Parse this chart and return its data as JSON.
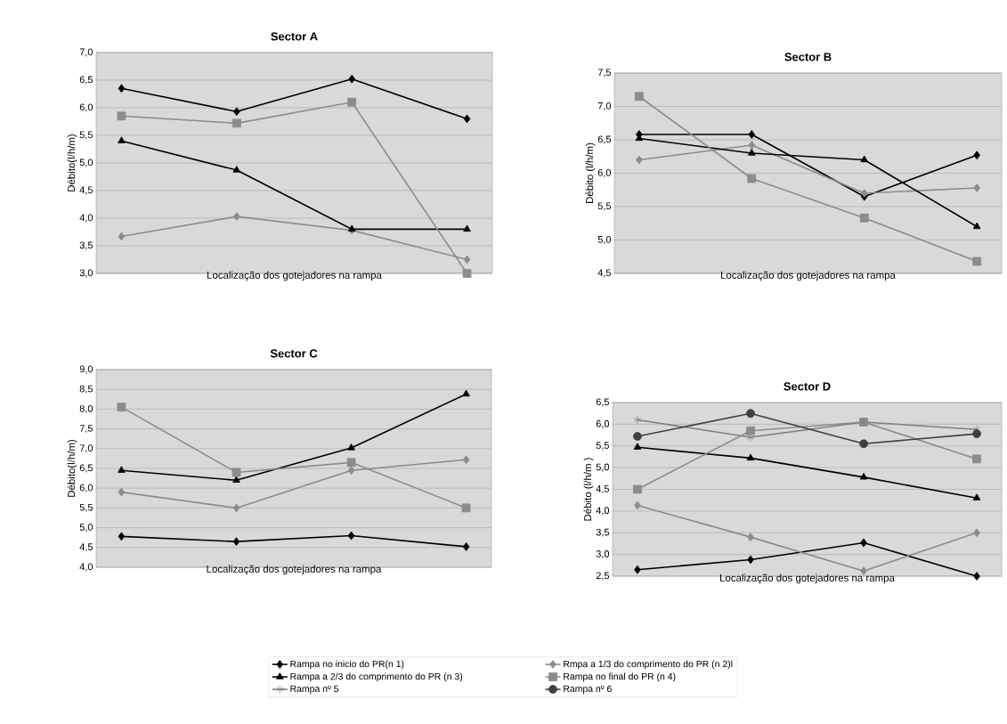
{
  "chart_data": [
    {
      "type": "line",
      "title": "Sector A",
      "xlabel": "Localização dos gotejadores na rampa",
      "ylabel": "Débito(l/h/m)",
      "categories": [
        null,
        null,
        null,
        null
      ],
      "ylim": [
        3,
        7
      ],
      "yticks": [
        {
          "value": 3,
          "label": "3,0"
        },
        {
          "value": 3.5,
          "label": "3,5"
        },
        {
          "value": 4,
          "label": "4,0"
        },
        {
          "value": 4.5,
          "label": "4,5"
        },
        {
          "value": 5,
          "label": "5,0"
        },
        {
          "value": 5.5,
          "label": "5,5"
        },
        {
          "value": 6,
          "label": "6,0"
        },
        {
          "value": 6.5,
          "label": "6,5"
        },
        {
          "value": 7,
          "label": "7,0"
        }
      ],
      "grid": "y",
      "tick_labels": "y",
      "line_style": "solid",
      "series": [
        {
          "color": "#000000",
          "marker": "diamond",
          "values": [
            6.35,
            5.93,
            6.52,
            5.8
          ]
        },
        {
          "color": "#8c8c8c",
          "marker": "diamond",
          "values": [
            3.67,
            4.03,
            3.78,
            3.25
          ]
        },
        {
          "color": "#000000",
          "marker": "triangle",
          "values": [
            5.4,
            4.87,
            3.8,
            3.8
          ]
        },
        {
          "color": "#8c8c8c",
          "marker": "square",
          "values": [
            5.85,
            5.72,
            6.1,
            3.0
          ]
        }
      ]
    },
    {
      "type": "line",
      "title": "Sector B",
      "xlabel": "Localização dos gotejadores na rampa",
      "ylabel": "Débito (l/h/m)",
      "categories": [
        null,
        null,
        null,
        null
      ],
      "ylim": [
        4.5,
        7.5
      ],
      "yticks": [
        {
          "value": 4.5,
          "label": "4,5"
        },
        {
          "value": 5,
          "label": "5,0"
        },
        {
          "value": 5.5,
          "label": "5,5"
        },
        {
          "value": 6,
          "label": "6,0"
        },
        {
          "value": 6.5,
          "label": "6,5"
        },
        {
          "value": 7,
          "label": "7,0"
        },
        {
          "value": 7.5,
          "label": "7,5"
        }
      ],
      "grid": "y",
      "tick_labels": "y",
      "line_style": "solid",
      "series": [
        {
          "color": "#000000",
          "marker": "diamond",
          "values": [
            6.58,
            6.58,
            5.65,
            6.27
          ]
        },
        {
          "color": "#8c8c8c",
          "marker": "diamond",
          "values": [
            6.2,
            6.42,
            5.7,
            5.78
          ]
        },
        {
          "color": "#000000",
          "marker": "triangle",
          "values": [
            6.52,
            6.3,
            6.2,
            5.2
          ]
        },
        {
          "color": "#8c8c8c",
          "marker": "square",
          "values": [
            7.15,
            5.92,
            5.33,
            4.68
          ]
        }
      ]
    },
    {
      "type": "line",
      "title": "Sector C",
      "xlabel": "Localização dos gotejadores na rampa",
      "ylabel": "Débito(l/h/m)",
      "categories": [
        null,
        null,
        null,
        null
      ],
      "ylim": [
        4,
        9
      ],
      "yticks": [
        {
          "value": 4,
          "label": "4,0"
        },
        {
          "value": 4.5,
          "label": "4,5"
        },
        {
          "value": 5,
          "label": "5,0"
        },
        {
          "value": 5.5,
          "label": "5,5"
        },
        {
          "value": 6,
          "label": "6,0"
        },
        {
          "value": 6.5,
          "label": "6,5"
        },
        {
          "value": 7,
          "label": "7,0"
        },
        {
          "value": 7.5,
          "label": "7,5"
        },
        {
          "value": 8,
          "label": "8,0"
        },
        {
          "value": 8.5,
          "label": "8,5"
        },
        {
          "value": 9,
          "label": "9,0"
        }
      ],
      "grid": "y",
      "tick_labels": "y",
      "line_style": "solid",
      "series": [
        {
          "color": "#000000",
          "marker": "diamond",
          "values": [
            4.78,
            4.65,
            4.8,
            4.52
          ]
        },
        {
          "color": "#8c8c8c",
          "marker": "diamond",
          "values": [
            5.9,
            5.5,
            6.45,
            6.72
          ]
        },
        {
          "color": "#000000",
          "marker": "triangle",
          "values": [
            6.45,
            6.2,
            7.02,
            8.38
          ]
        },
        {
          "color": "#8c8c8c",
          "marker": "square",
          "values": [
            8.05,
            6.4,
            6.65,
            5.5
          ]
        }
      ]
    },
    {
      "type": "line",
      "title": "Sector D",
      "xlabel": "Localização dos gotejadores na rampa",
      "ylabel": "Débito (l/h/m )",
      "categories": [
        null,
        null,
        null,
        null
      ],
      "ylim": [
        2.5,
        6.5
      ],
      "yticks": [
        {
          "value": 2.5,
          "label": "2,5"
        },
        {
          "value": 3,
          "label": "3,0"
        },
        {
          "value": 3.5,
          "label": "3,5"
        },
        {
          "value": 4,
          "label": "4,0"
        },
        {
          "value": 4.5,
          "label": "4,5"
        },
        {
          "value": 5,
          "label": "5,0"
        },
        {
          "value": 5.5,
          "label": "5,5"
        },
        {
          "value": 6,
          "label": "6,0"
        },
        {
          "value": 6.5,
          "label": "6,5"
        }
      ],
      "grid": "y",
      "tick_labels": "y",
      "line_style": "solid",
      "legend": "bottom",
      "series": [
        {
          "name": "Rampa no inicio do PR(n 1)",
          "color": "#000000",
          "marker": "diamond",
          "values": [
            2.65,
            2.88,
            3.27,
            2.5
          ]
        },
        {
          "name": "Rmpa a 1/3 do comprimento do PR (n 2)l",
          "color": "#8c8c8c",
          "marker": "diamond",
          "values": [
            4.13,
            3.4,
            2.62,
            3.5
          ]
        },
        {
          "name": "Rampa a 2/3 do comprimento do PR (n 3)",
          "color": "#000000",
          "marker": "triangle",
          "values": [
            5.47,
            5.22,
            4.78,
            4.3
          ]
        },
        {
          "name": "Rampa no final do PR (n 4)",
          "color": "#8c8c8c",
          "marker": "square",
          "values": [
            4.5,
            5.85,
            6.05,
            5.2
          ]
        },
        {
          "name": "Rampa nº 5",
          "color": "#7f7f7f",
          "marker": "cross",
          "values": [
            6.1,
            5.7,
            6.05,
            5.88
          ]
        },
        {
          "name": "Rampa nº 6",
          "color": "#3f3f3f",
          "marker": "circle",
          "values": [
            5.72,
            6.25,
            5.55,
            5.78
          ]
        }
      ]
    }
  ]
}
